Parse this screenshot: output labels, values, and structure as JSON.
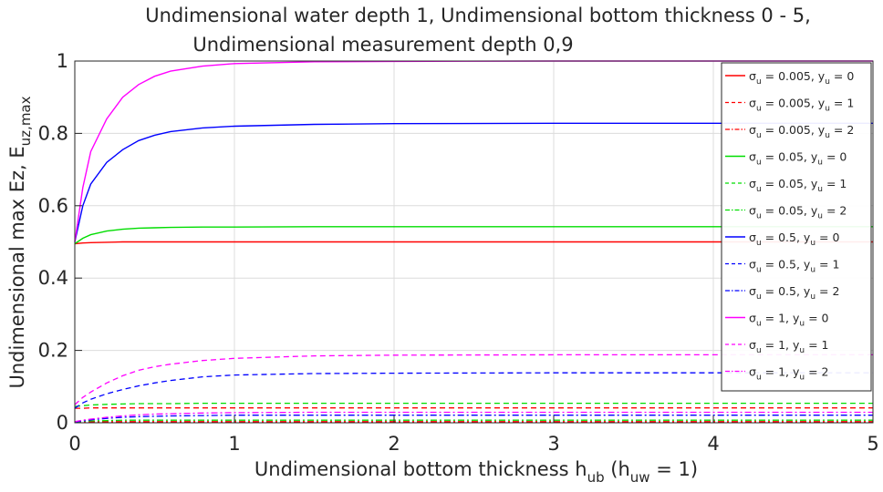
{
  "chart_data": {
    "type": "line",
    "title_lines": [
      "Undimensional water depth 1, Undimensional bottom thickness 0 - 5,",
      "Undimensional measurement depth 0,9"
    ],
    "xlabel": {
      "main": "Undimensional bottom thickness h",
      "sub": "ub",
      "paren_open": " (h",
      "paren_sub": "uw",
      "paren_close": " = 1)"
    },
    "ylabel": {
      "main": "Undimensional max Ez, E",
      "sub": "uz,max"
    },
    "xlim": [
      0,
      5
    ],
    "ylim": [
      0,
      1
    ],
    "xticks": [
      "0",
      "1",
      "2",
      "3",
      "4",
      "5"
    ],
    "yticks": [
      "0",
      "0.2",
      "0.4",
      "0.6",
      "0.8",
      "1"
    ],
    "grid": true,
    "legend_position": "top-right",
    "x": [
      0,
      0.05,
      0.1,
      0.2,
      0.3,
      0.4,
      0.5,
      0.6,
      0.8,
      1.0,
      1.5,
      2.0,
      3.0,
      4.0,
      5.0
    ],
    "series": [
      {
        "label": {
          "sym": "σ",
          "sub1": "u",
          "mid": " = 0.005, y",
          "sub2": "u",
          "end": " = 0"
        },
        "color": "#ff0000",
        "dash": "solid",
        "values": [
          0.495,
          0.497,
          0.498,
          0.499,
          0.5,
          0.5,
          0.5,
          0.5,
          0.5,
          0.5,
          0.5,
          0.5,
          0.5,
          0.5,
          0.5
        ]
      },
      {
        "label": {
          "sym": "σ",
          "sub1": "u",
          "mid": " = 0.005, y",
          "sub2": "u",
          "end": " = 1"
        },
        "color": "#ff0000",
        "dash": "dashed",
        "values": [
          0.04,
          0.04,
          0.041,
          0.041,
          0.041,
          0.041,
          0.041,
          0.041,
          0.041,
          0.041,
          0.041,
          0.041,
          0.041,
          0.041,
          0.041
        ]
      },
      {
        "label": {
          "sym": "σ",
          "sub1": "u",
          "mid": " = 0.005, y",
          "sub2": "u",
          "end": " = 2"
        },
        "color": "#ff0000",
        "dash": "dashdot",
        "values": [
          0.002,
          0.002,
          0.003,
          0.003,
          0.003,
          0.003,
          0.003,
          0.003,
          0.003,
          0.003,
          0.003,
          0.003,
          0.003,
          0.003,
          0.003
        ]
      },
      {
        "label": {
          "sym": "σ",
          "sub1": "u",
          "mid": " = 0.05, y",
          "sub2": "u",
          "end": " = 0"
        },
        "color": "#00dd00",
        "dash": "solid",
        "values": [
          0.495,
          0.51,
          0.52,
          0.53,
          0.535,
          0.538,
          0.539,
          0.54,
          0.541,
          0.541,
          0.542,
          0.542,
          0.542,
          0.542,
          0.542
        ]
      },
      {
        "label": {
          "sym": "σ",
          "sub1": "u",
          "mid": " = 0.05, y",
          "sub2": "u",
          "end": " = 1"
        },
        "color": "#00dd00",
        "dash": "dashed",
        "values": [
          0.045,
          0.047,
          0.049,
          0.051,
          0.052,
          0.053,
          0.053,
          0.053,
          0.054,
          0.054,
          0.054,
          0.054,
          0.054,
          0.054,
          0.054
        ]
      },
      {
        "label": {
          "sym": "σ",
          "sub1": "u",
          "mid": " = 0.05, y",
          "sub2": "u",
          "end": " = 2"
        },
        "color": "#00dd00",
        "dash": "dashdot",
        "values": [
          0.002,
          0.004,
          0.005,
          0.006,
          0.007,
          0.007,
          0.007,
          0.007,
          0.007,
          0.007,
          0.007,
          0.007,
          0.007,
          0.007,
          0.007
        ]
      },
      {
        "label": {
          "sym": "σ",
          "sub1": "u",
          "mid": " = 0.5, y",
          "sub2": "u",
          "end": " = 0"
        },
        "color": "#0000ff",
        "dash": "solid",
        "values": [
          0.5,
          0.6,
          0.66,
          0.72,
          0.755,
          0.78,
          0.795,
          0.805,
          0.815,
          0.82,
          0.825,
          0.827,
          0.828,
          0.828,
          0.828
        ]
      },
      {
        "label": {
          "sym": "σ",
          "sub1": "u",
          "mid": " = 0.5, y",
          "sub2": "u",
          "end": " = 1"
        },
        "color": "#0000ff",
        "dash": "dashed",
        "values": [
          0.04,
          0.055,
          0.065,
          0.08,
          0.092,
          0.102,
          0.11,
          0.117,
          0.127,
          0.132,
          0.136,
          0.137,
          0.138,
          0.138,
          0.138
        ]
      },
      {
        "label": {
          "sym": "σ",
          "sub1": "u",
          "mid": " = 0.5, y",
          "sub2": "u",
          "end": " = 2"
        },
        "color": "#0000ff",
        "dash": "dashdot",
        "values": [
          0.002,
          0.005,
          0.008,
          0.012,
          0.015,
          0.017,
          0.018,
          0.019,
          0.02,
          0.021,
          0.021,
          0.021,
          0.021,
          0.021,
          0.021
        ]
      },
      {
        "label": {
          "sym": "σ",
          "sub1": "u",
          "mid": " = 1, y",
          "sub2": "u",
          "end": " = 0"
        },
        "color": "#ff00ff",
        "dash": "solid",
        "values": [
          0.5,
          0.65,
          0.75,
          0.84,
          0.9,
          0.935,
          0.958,
          0.972,
          0.986,
          0.993,
          0.998,
          0.999,
          1.0,
          1.0,
          1.0
        ]
      },
      {
        "label": {
          "sym": "σ",
          "sub1": "u",
          "mid": " = 1, y",
          "sub2": "u",
          "end": " = 1"
        },
        "color": "#ff00ff",
        "dash": "dashed",
        "values": [
          0.05,
          0.07,
          0.085,
          0.11,
          0.13,
          0.145,
          0.155,
          0.162,
          0.172,
          0.178,
          0.185,
          0.187,
          0.188,
          0.188,
          0.188
        ]
      },
      {
        "label": {
          "sym": "σ",
          "sub1": "u",
          "mid": " = 1, y",
          "sub2": "u",
          "end": " = 2"
        },
        "color": "#ff00ff",
        "dash": "dashdot",
        "values": [
          0.003,
          0.007,
          0.01,
          0.015,
          0.019,
          0.022,
          0.024,
          0.025,
          0.027,
          0.028,
          0.029,
          0.029,
          0.029,
          0.029,
          0.029
        ]
      }
    ]
  }
}
